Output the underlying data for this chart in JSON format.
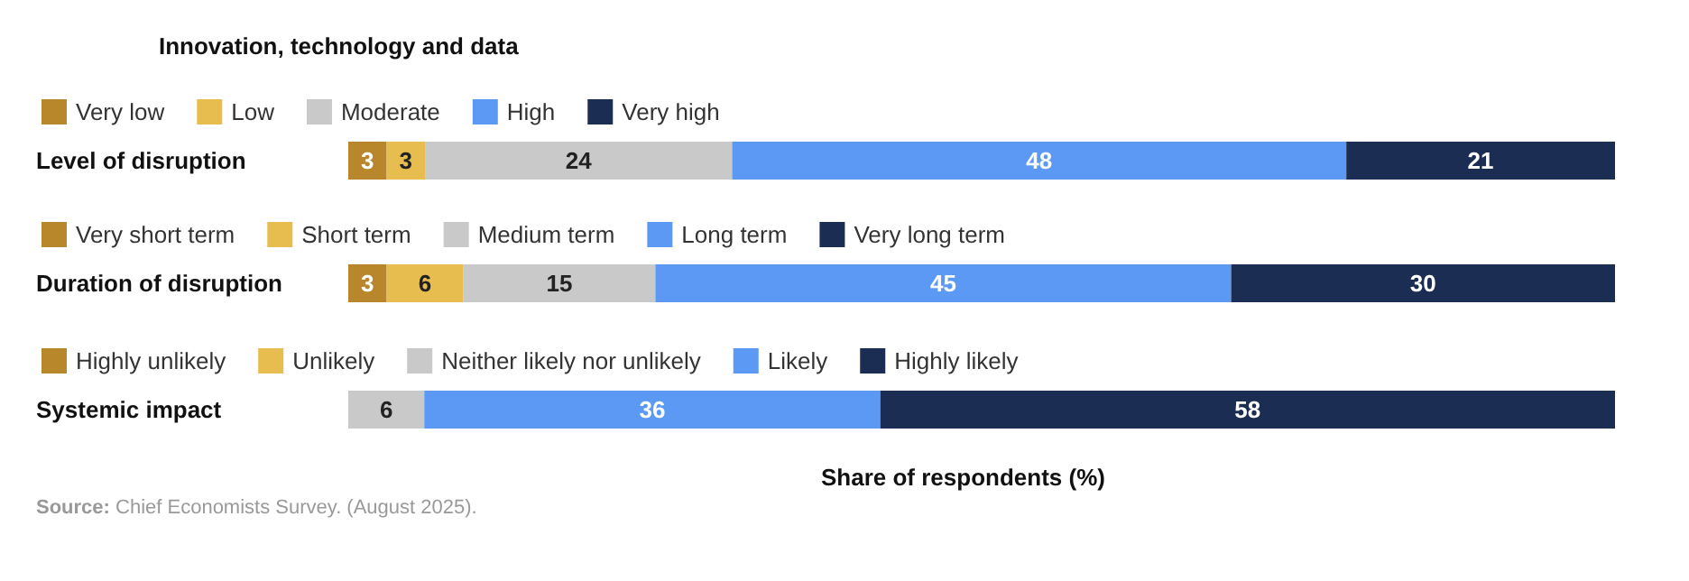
{
  "chart_data": [
    {
      "type": "bar",
      "orientation": "horizontal",
      "stacked": true,
      "title": "Innovation, technology and data",
      "categories": [
        "Level of disruption"
      ],
      "tick_labels": "y",
      "legend": "top left",
      "data_labels": true,
      "series": [
        {
          "name": "Very low",
          "color": "#b8862b",
          "values": [
            3
          ]
        },
        {
          "name": "Low",
          "color": "#e8bd4f",
          "values": [
            3
          ]
        },
        {
          "name": "Moderate",
          "color": "#c9c9c9",
          "values": [
            24
          ]
        },
        {
          "name": "High",
          "color": "#5b99f5",
          "values": [
            48
          ]
        },
        {
          "name": "Very high",
          "color": "#1b2d52",
          "values": [
            21
          ]
        }
      ]
    },
    {
      "type": "bar",
      "orientation": "horizontal",
      "stacked": true,
      "categories": [
        "Duration of disruption"
      ],
      "tick_labels": "y",
      "legend": "top left",
      "data_labels": true,
      "series": [
        {
          "name": "Very short term",
          "color": "#b8862b",
          "values": [
            3
          ]
        },
        {
          "name": "Short term",
          "color": "#e8bd4f",
          "values": [
            6
          ]
        },
        {
          "name": "Medium term",
          "color": "#c9c9c9",
          "values": [
            15
          ]
        },
        {
          "name": "Long term",
          "color": "#5b99f5",
          "values": [
            45
          ]
        },
        {
          "name": "Very long term",
          "color": "#1b2d52",
          "values": [
            30
          ]
        }
      ]
    },
    {
      "type": "bar",
      "orientation": "horizontal",
      "stacked": true,
      "categories": [
        "Systemic impact"
      ],
      "tick_labels": "y",
      "legend": "top left",
      "data_labels": true,
      "xlabel": "Share of respondents (%)",
      "annotations": [
        "Source: Chief Economists Survey. (August 2025)."
      ],
      "series": [
        {
          "name": "Highly unlikely",
          "color": "#b8862b",
          "values": [
            null
          ]
        },
        {
          "name": "Unlikely",
          "color": "#e8bd4f",
          "values": [
            null
          ]
        },
        {
          "name": "Neither likely nor unlikely",
          "color": "#c9c9c9",
          "values": [
            6
          ]
        },
        {
          "name": "Likely",
          "color": "#5b99f5",
          "values": [
            36
          ]
        },
        {
          "name": "Highly likely",
          "color": "#1b2d52",
          "values": [
            58
          ]
        }
      ]
    }
  ]
}
